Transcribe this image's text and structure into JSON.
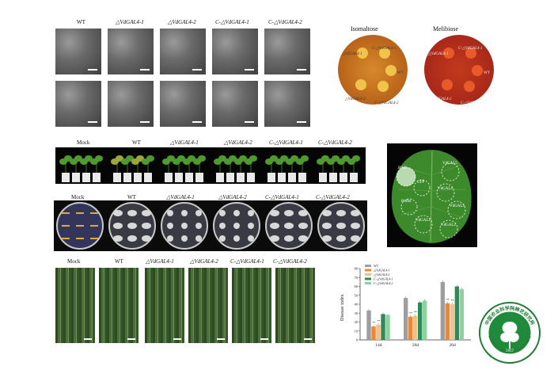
{
  "figure": {
    "sem_labels": [
      "WT",
      "△VdGAL4-1",
      "△VdGAL4-2",
      "C-△VdGAL4-1",
      "C-△VdGAL4-2"
    ],
    "plant_labels": [
      "Mock",
      "WT",
      "△VdGAL4-1",
      "△VdGAL4-2",
      "C-△VdGAL4-1",
      "C-△VdGAL4-2"
    ],
    "dish_labels": [
      "Mock",
      "WT",
      "△VdGAL4-1",
      "△VdGAL4-2",
      "C-△VdGAL4-1",
      "C-△VdGAL4-2"
    ],
    "stem_labels": [
      "Mock",
      "WT",
      "△VdGAL4-1",
      "△VdGAL4-2",
      "C-△VdGAL4-1",
      "C-△VdGAL4-2"
    ],
    "plates": {
      "isomaltose": {
        "title": "Isomaltose",
        "spots": [
          "△VdGAL4-1",
          "C-△VdGAL4-1",
          "WT",
          "△VdGAL4-2",
          "C-△VdGAL4-2"
        ]
      },
      "melibiose": {
        "title": "Melibiose",
        "spots": [
          "△VdGAL4-1",
          "C-△VdGAL4-1",
          "WT",
          "△VdGAL4-2",
          "C-△VdGAL4-2"
        ]
      }
    },
    "leaf_labels": [
      "BAX",
      "VdGAL5",
      "GFP",
      "VdGAL4",
      "Buffer",
      "VdGAL3",
      "VdGAL1",
      "VdGAL2"
    ],
    "logo": {
      "text_top": "中国农业科学院棉花研究所",
      "text_bottom": "INSTITUTE OF COTTON RESEARCH OF CAAS",
      "year": "1957"
    }
  },
  "chart_data": {
    "type": "bar",
    "categories": [
      "14d",
      "20d",
      "26d"
    ],
    "series": [
      {
        "name": "WT",
        "values": [
          33,
          47,
          65
        ],
        "color": "#9e9e9e"
      },
      {
        "name": "△VdGAL4-1",
        "values": [
          15,
          26,
          41
        ],
        "color": "#e8863a"
      },
      {
        "name": "△VdGAL4-2",
        "values": [
          17,
          27,
          40
        ],
        "color": "#f5c08a"
      },
      {
        "name": "C-△VdGAL4-1",
        "values": [
          29,
          42,
          60
        ],
        "color": "#2e8b57"
      },
      {
        "name": "C-△VdGAL4-2",
        "values": [
          28,
          44,
          57
        ],
        "color": "#8fd19e"
      }
    ],
    "ylabel": "Disease index",
    "ylim": [
      0,
      80
    ],
    "yticks": [
      "0",
      "10",
      "20",
      "30",
      "40",
      "50",
      "60",
      "70",
      "80"
    ],
    "annotations": [
      "**",
      "**",
      "**",
      "**",
      "**",
      "**"
    ],
    "legend_position": "top-left"
  }
}
